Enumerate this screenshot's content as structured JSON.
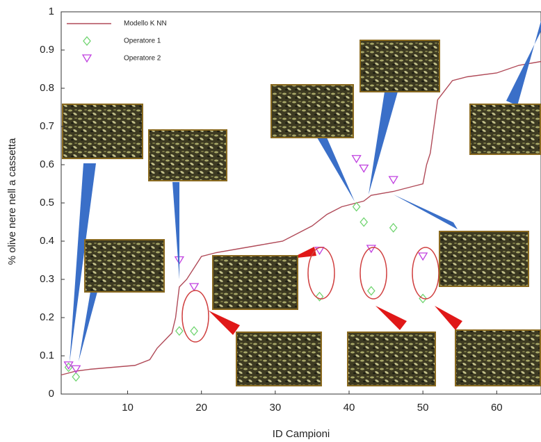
{
  "chart_data": {
    "type": "line",
    "x_label": "ID Campioni",
    "y_label": "% olive nere nell a cassetta",
    "xlim": [
      1,
      66
    ],
    "ylim": [
      0,
      1
    ],
    "xticks": [
      10,
      20,
      30,
      40,
      50,
      60
    ],
    "yticks": [
      0,
      0.1,
      0.2,
      0.3,
      0.4,
      0.5,
      0.6,
      0.7,
      0.8,
      0.9,
      1
    ],
    "legend": "upper left",
    "series": [
      {
        "name": "Modello K NN",
        "color": "#b04a58",
        "style": "line",
        "x": [
          1,
          2,
          3,
          5,
          8,
          11,
          13,
          14,
          15,
          16,
          16.5,
          17,
          18,
          19,
          20,
          22,
          25,
          28,
          31,
          33,
          35,
          37,
          39,
          41,
          42,
          43,
          46,
          49,
          50,
          50.5,
          51,
          52,
          54,
          56,
          60,
          63,
          66
        ],
        "values": [
          0.05,
          0.055,
          0.06,
          0.065,
          0.07,
          0.075,
          0.09,
          0.12,
          0.14,
          0.16,
          0.2,
          0.28,
          0.3,
          0.33,
          0.36,
          0.37,
          0.38,
          0.39,
          0.4,
          0.42,
          0.44,
          0.47,
          0.49,
          0.5,
          0.505,
          0.52,
          0.53,
          0.545,
          0.55,
          0.6,
          0.63,
          0.77,
          0.82,
          0.83,
          0.84,
          0.86,
          0.87
        ]
      },
      {
        "name": "Operatore 1",
        "color": "#6fd46f",
        "style": "diamond",
        "x": [
          2,
          3,
          17,
          19,
          36,
          41,
          42,
          43,
          46,
          50
        ],
        "values": [
          0.07,
          0.045,
          0.165,
          0.165,
          0.255,
          0.49,
          0.45,
          0.27,
          0.435,
          0.25
        ]
      },
      {
        "name": "Operatore 2",
        "color": "#c040e0",
        "style": "triangle",
        "x": [
          2,
          3,
          17,
          19,
          36,
          41,
          42,
          43,
          46,
          50
        ],
        "values": [
          0.075,
          0.065,
          0.35,
          0.28,
          0.375,
          0.615,
          0.59,
          0.38,
          0.56,
          0.36
        ]
      }
    ]
  }
}
